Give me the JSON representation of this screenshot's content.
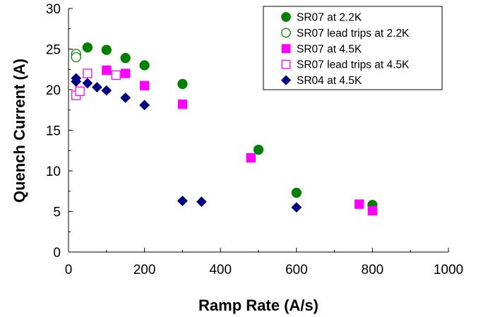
{
  "chart_data": {
    "type": "scatter",
    "xlabel": "Ramp Rate (A/s)",
    "ylabel": "Quench Current (A)",
    "xlim": [
      0,
      1000
    ],
    "ylim": [
      0,
      30
    ],
    "x_ticks": [
      0,
      200,
      400,
      600,
      800,
      1000
    ],
    "y_ticks": [
      0,
      5,
      10,
      15,
      20,
      25,
      30
    ],
    "grid": false,
    "legend_position": "top-right",
    "series": [
      {
        "name": "SR07 at 2.2K",
        "marker": "circle",
        "filled": true,
        "color": "#008000",
        "points": [
          [
            50,
            25.2
          ],
          [
            100,
            24.9
          ],
          [
            150,
            23.9
          ],
          [
            200,
            23.0
          ],
          [
            300,
            20.7
          ],
          [
            500,
            12.6
          ],
          [
            600,
            7.3
          ],
          [
            800,
            5.8
          ]
        ]
      },
      {
        "name": "SR07 lead trips at 2.2K",
        "marker": "circle",
        "filled": false,
        "color": "#008000",
        "points": [
          [
            20,
            24.4
          ],
          [
            20,
            24.0
          ]
        ]
      },
      {
        "name": "SR07 at 4.5K",
        "marker": "square",
        "filled": true,
        "color": "#ff00ff",
        "points": [
          [
            100,
            22.4
          ],
          [
            150,
            22.0
          ],
          [
            200,
            20.5
          ],
          [
            300,
            18.2
          ],
          [
            480,
            11.6
          ],
          [
            765,
            5.9
          ],
          [
            800,
            5.1
          ]
        ]
      },
      {
        "name": "SR07 lead trips at 4.5K",
        "marker": "square",
        "filled": false,
        "color": "#ff00ff",
        "points": [
          [
            20,
            19.3
          ],
          [
            30,
            19.8
          ],
          [
            50,
            22.0
          ],
          [
            125,
            21.8
          ]
        ]
      },
      {
        "name": "SR04 at 4.5K",
        "marker": "diamond",
        "filled": true,
        "color": "#000080",
        "points": [
          [
            20,
            21.4
          ],
          [
            20,
            21.0
          ],
          [
            50,
            20.8
          ],
          [
            75,
            20.3
          ],
          [
            100,
            19.9
          ],
          [
            150,
            19.0
          ],
          [
            200,
            18.1
          ],
          [
            300,
            6.3
          ],
          [
            350,
            6.2
          ],
          [
            600,
            5.5
          ]
        ]
      }
    ]
  }
}
